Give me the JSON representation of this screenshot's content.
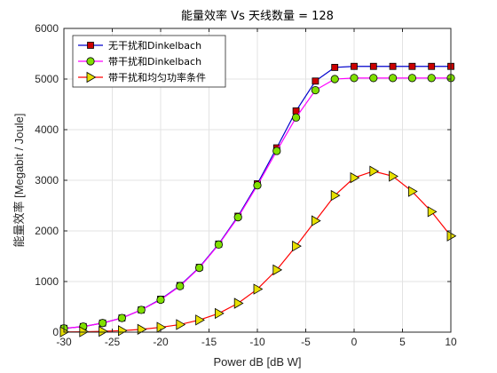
{
  "chart_data": {
    "type": "line",
    "title": "能量效率 Vs 天线数量 = 128",
    "xlabel": "Power dB [dB W]",
    "ylabel": "能量效率 [Megabit / Joule]",
    "xlim": [
      -30,
      10
    ],
    "ylim": [
      0,
      6000
    ],
    "xticks": [
      -30,
      -25,
      -20,
      -15,
      -10,
      -5,
      0,
      5,
      10
    ],
    "yticks": [
      0,
      1000,
      2000,
      3000,
      4000,
      5000,
      6000
    ],
    "grid": true,
    "legend_position": "top-left",
    "series": [
      {
        "name": "无干扰和Dinkelbach",
        "color": "#0000cc",
        "marker": "square",
        "marker_color": "#cc0000",
        "x": [
          -30,
          -28,
          -26,
          -24,
          -22,
          -20,
          -18,
          -16,
          -14,
          -12,
          -10,
          -8,
          -6,
          -4,
          -2,
          0,
          2,
          4,
          6,
          8,
          10
        ],
        "y": [
          75,
          110,
          180,
          280,
          440,
          650,
          920,
          1280,
          1740,
          2290,
          2930,
          3640,
          4370,
          4960,
          5230,
          5250,
          5250,
          5250,
          5250,
          5250,
          5250
        ]
      },
      {
        "name": "带干扰和Dinkelbach",
        "color": "#ff00ff",
        "marker": "circle",
        "marker_color": "#80e000",
        "x": [
          -30,
          -28,
          -26,
          -24,
          -22,
          -20,
          -18,
          -16,
          -14,
          -12,
          -10,
          -8,
          -6,
          -4,
          -2,
          0,
          2,
          4,
          6,
          8,
          10
        ],
        "y": [
          75,
          110,
          180,
          280,
          440,
          640,
          910,
          1270,
          1730,
          2270,
          2900,
          3580,
          4240,
          4780,
          5000,
          5020,
          5020,
          5020,
          5020,
          5020,
          5020
        ]
      },
      {
        "name": "带干扰和均匀功率条件",
        "color": "#ff0000",
        "marker": "triangle-right",
        "marker_color": "#e8e000",
        "x": [
          -30,
          -28,
          -26,
          -24,
          -22,
          -20,
          -18,
          -16,
          -14,
          -12,
          -10,
          -8,
          -6,
          -4,
          -2,
          0,
          2,
          4,
          6,
          8,
          10
        ],
        "y": [
          5,
          8,
          15,
          30,
          55,
          95,
          150,
          240,
          370,
          570,
          850,
          1230,
          1700,
          2200,
          2700,
          3050,
          3180,
          3080,
          2780,
          2380,
          1900
        ]
      }
    ]
  }
}
